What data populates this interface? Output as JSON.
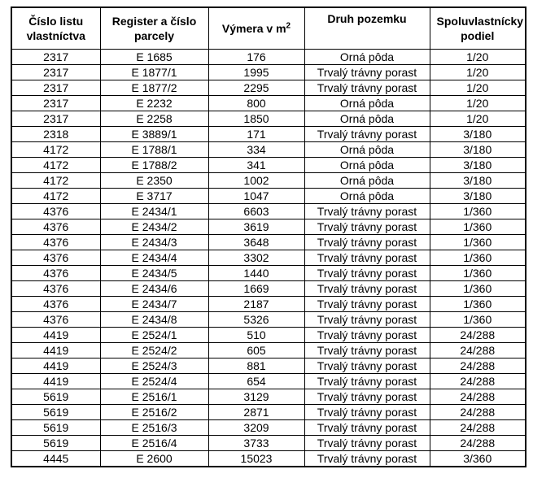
{
  "table": {
    "headers": [
      {
        "label": "Číslo listu vlastníctva"
      },
      {
        "label": "Register a číslo parcely"
      },
      {
        "label": "Výmera v m",
        "sup": "2"
      },
      {
        "label": "Druh pozemku"
      },
      {
        "label": "Spoluvlastnícky podiel"
      }
    ],
    "rows": [
      [
        "2317",
        "E 1685",
        "176",
        "Orná pôda",
        "1/20"
      ],
      [
        "2317",
        "E 1877/1",
        "1995",
        "Trvalý trávny porast",
        "1/20"
      ],
      [
        "2317",
        "E 1877/2",
        "2295",
        "Trvalý trávny porast",
        "1/20"
      ],
      [
        "2317",
        "E 2232",
        "800",
        "Orná pôda",
        "1/20"
      ],
      [
        "2317",
        "E 2258",
        "1850",
        "Orná pôda",
        "1/20"
      ],
      [
        "2318",
        "E 3889/1",
        "171",
        "Trvalý trávny porast",
        "3/180"
      ],
      [
        "4172",
        "E 1788/1",
        "334",
        "Orná pôda",
        "3/180"
      ],
      [
        "4172",
        "E 1788/2",
        "341",
        "Orná pôda",
        "3/180"
      ],
      [
        "4172",
        "E 2350",
        "1002",
        "Orná pôda",
        "3/180"
      ],
      [
        "4172",
        "E 3717",
        "1047",
        "Orná pôda",
        "3/180"
      ],
      [
        "4376",
        "E 2434/1",
        "6603",
        "Trvalý trávny porast",
        "1/360"
      ],
      [
        "4376",
        "E 2434/2",
        "3619",
        "Trvalý trávny porast",
        "1/360"
      ],
      [
        "4376",
        "E 2434/3",
        "3648",
        "Trvalý trávny porast",
        "1/360"
      ],
      [
        "4376",
        "E 2434/4",
        "3302",
        "Trvalý trávny porast",
        "1/360"
      ],
      [
        "4376",
        "E 2434/5",
        "1440",
        "Trvalý trávny porast",
        "1/360"
      ],
      [
        "4376",
        "E 2434/6",
        "1669",
        "Trvalý trávny porast",
        "1/360"
      ],
      [
        "4376",
        "E 2434/7",
        "2187",
        "Trvalý trávny porast",
        "1/360"
      ],
      [
        "4376",
        "E 2434/8",
        "5326",
        "Trvalý trávny porast",
        "1/360"
      ],
      [
        "4419",
        "E 2524/1",
        "510",
        "Trvalý trávny porast",
        "24/288"
      ],
      [
        "4419",
        "E 2524/2",
        "605",
        "Trvalý trávny porast",
        "24/288"
      ],
      [
        "4419",
        "E 2524/3",
        "881",
        "Trvalý trávny porast",
        "24/288"
      ],
      [
        "4419",
        "E 2524/4",
        "654",
        "Trvalý trávny porast",
        "24/288"
      ],
      [
        "5619",
        "E 2516/1",
        "3129",
        "Trvalý trávny porast",
        "24/288"
      ],
      [
        "5619",
        "E 2516/2",
        "2871",
        "Trvalý trávny porast",
        "24/288"
      ],
      [
        "5619",
        "E 2516/3",
        "3209",
        "Trvalý trávny porast",
        "24/288"
      ],
      [
        "5619",
        "E 2516/4",
        "3733",
        "Trvalý trávny porast",
        "24/288"
      ],
      [
        "4445",
        "E 2600",
        "15023",
        "Trvalý trávny porast",
        "3/360"
      ]
    ]
  }
}
